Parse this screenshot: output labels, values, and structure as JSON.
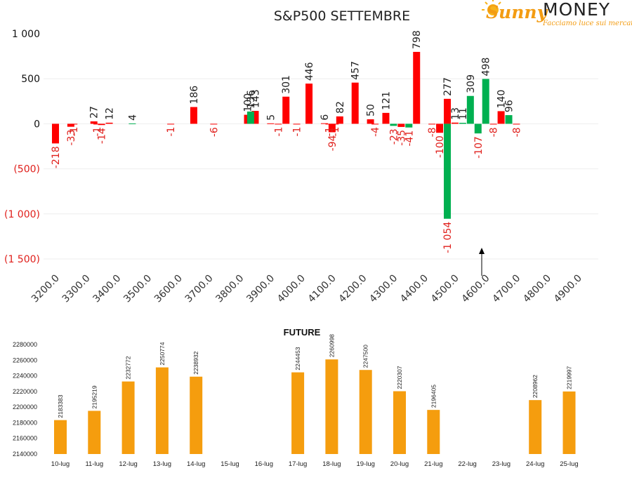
{
  "logo": {
    "sunny": "Sunny",
    "money": "MONEY",
    "tagline": "Facciamo luce sui mercati"
  },
  "colors": {
    "call": "#ff0000",
    "put": "#00b050",
    "future": "#f59d0e",
    "neg_label": "#e0201c",
    "pos_label": "#222222"
  },
  "chart_data": [
    {
      "type": "bar",
      "title": "S&P500 SETTEMBRE",
      "ylim": [
        -1500,
        1000
      ],
      "yticks": [
        {
          "value": 1000,
          "label": "1 000"
        },
        {
          "value": 500,
          "label": "500"
        },
        {
          "value": 0,
          "label": "0"
        },
        {
          "value": -500,
          "label": "(500)"
        },
        {
          "value": -1000,
          "label": "(1 000)"
        },
        {
          "value": -1500,
          "label": "(1 500)"
        }
      ],
      "xticks": [
        "3200.0",
        "3300.0",
        "3400.0",
        "3500.0",
        "3600.0",
        "3700.0",
        "3800.0",
        "3900.0",
        "4000.0",
        "4100.0",
        "4200.0",
        "4300.0",
        "4400.0",
        "4500.0",
        "4600.0",
        "4700.0",
        "4800.0",
        "4900.0"
      ],
      "grid": true,
      "series": [
        {
          "color": "red",
          "points": [
            {
              "x": 3200,
              "y": -218,
              "label": "-218"
            },
            {
              "x": 3250,
              "y": -33,
              "label": "-33"
            },
            {
              "x": 3260,
              "y": -1,
              "label": "-1"
            },
            {
              "x": 3325,
              "y": 27,
              "label": "27"
            },
            {
              "x": 3335,
              "y": -1,
              "label": "-1"
            },
            {
              "x": 3350,
              "y": -14,
              "label": "-14"
            },
            {
              "x": 3375,
              "y": 12,
              "label": "12"
            },
            {
              "x": 3575,
              "y": -1,
              "label": "-1"
            },
            {
              "x": 3650,
              "y": 186,
              "label": "186"
            },
            {
              "x": 3715,
              "y": -6,
              "label": "-6"
            },
            {
              "x": 3825,
              "y": 100,
              "label": "100"
            },
            {
              "x": 3850,
              "y": 143,
              "label": "143"
            },
            {
              "x": 3900,
              "y": 5,
              "label": "5"
            },
            {
              "x": 3925,
              "y": -1,
              "label": "-1"
            },
            {
              "x": 3950,
              "y": 301,
              "label": "301"
            },
            {
              "x": 3985,
              "y": -1,
              "label": "-1"
            },
            {
              "x": 4025,
              "y": 446,
              "label": "446"
            },
            {
              "x": 4075,
              "y": 6,
              "label": "6"
            },
            {
              "x": 4090,
              "y": -1,
              "label": "-1"
            },
            {
              "x": 4100,
              "y": -94,
              "label": "-94"
            },
            {
              "x": 4110,
              "y": -1,
              "label": "-1"
            },
            {
              "x": 4125,
              "y": 82,
              "label": "82"
            },
            {
              "x": 4175,
              "y": 457,
              "label": "457"
            },
            {
              "x": 4225,
              "y": 50,
              "label": "50"
            },
            {
              "x": 4240,
              "y": -4,
              "label": "-4"
            },
            {
              "x": 4275,
              "y": 121,
              "label": "121"
            },
            {
              "x": 4325,
              "y": -35,
              "label": "-35"
            },
            {
              "x": 4375,
              "y": 798,
              "label": "798"
            },
            {
              "x": 4425,
              "y": -8,
              "label": "-8"
            },
            {
              "x": 4450,
              "y": -100,
              "label": "-100"
            },
            {
              "x": 4475,
              "y": 277,
              "label": "277"
            },
            {
              "x": 4500,
              "y": 13,
              "label": "13"
            },
            {
              "x": 4625,
              "y": -8,
              "label": "-8"
            },
            {
              "x": 4650,
              "y": 140,
              "label": "140"
            },
            {
              "x": 4700,
              "y": -8,
              "label": "-8"
            }
          ]
        },
        {
          "color": "green",
          "points": [
            {
              "x": 3450,
              "y": 4,
              "label": "4"
            },
            {
              "x": 3835,
              "y": 136,
              "label": "136"
            },
            {
              "x": 4300,
              "y": -23,
              "label": "-23"
            },
            {
              "x": 4350,
              "y": -41,
              "label": "-41"
            },
            {
              "x": 4475,
              "y": -1054,
              "label": "-1 054"
            },
            {
              "x": 4525,
              "y": 11,
              "label": "11"
            },
            {
              "x": 4550,
              "y": 309,
              "label": "309"
            },
            {
              "x": 4575,
              "y": -107,
              "label": "-107"
            },
            {
              "x": 4600,
              "y": 498,
              "label": "498"
            },
            {
              "x": 4675,
              "y": 96,
              "label": "96"
            }
          ]
        }
      ]
    },
    {
      "type": "bar",
      "title": "FUTURE",
      "ylim": [
        2140000,
        2280000
      ],
      "yticks": [
        "2140000",
        "2160000",
        "2180000",
        "2200000",
        "2220000",
        "2240000",
        "2260000",
        "2280000"
      ],
      "categories": [
        "10-lug",
        "11-lug",
        "12-lug",
        "13-lug",
        "14-lug",
        "15-lug",
        "16-lug",
        "17-lug",
        "18-lug",
        "19-lug",
        "20-lug",
        "21-lug",
        "22-lug",
        "23-lug",
        "24-lug",
        "25-lug"
      ],
      "values": [
        2183383,
        2195219,
        2232772,
        2250774,
        2238932,
        null,
        null,
        2244453,
        2260998,
        2247500,
        2220307,
        2196405,
        null,
        null,
        2208962,
        2219997
      ],
      "labels": [
        "2183383",
        "2195219",
        "2232772",
        "2250774",
        "2238932",
        "",
        "",
        "2244453",
        "2260998",
        "2247500",
        "2220307",
        "2196405",
        "",
        "",
        "2208962",
        "2219997"
      ]
    }
  ]
}
